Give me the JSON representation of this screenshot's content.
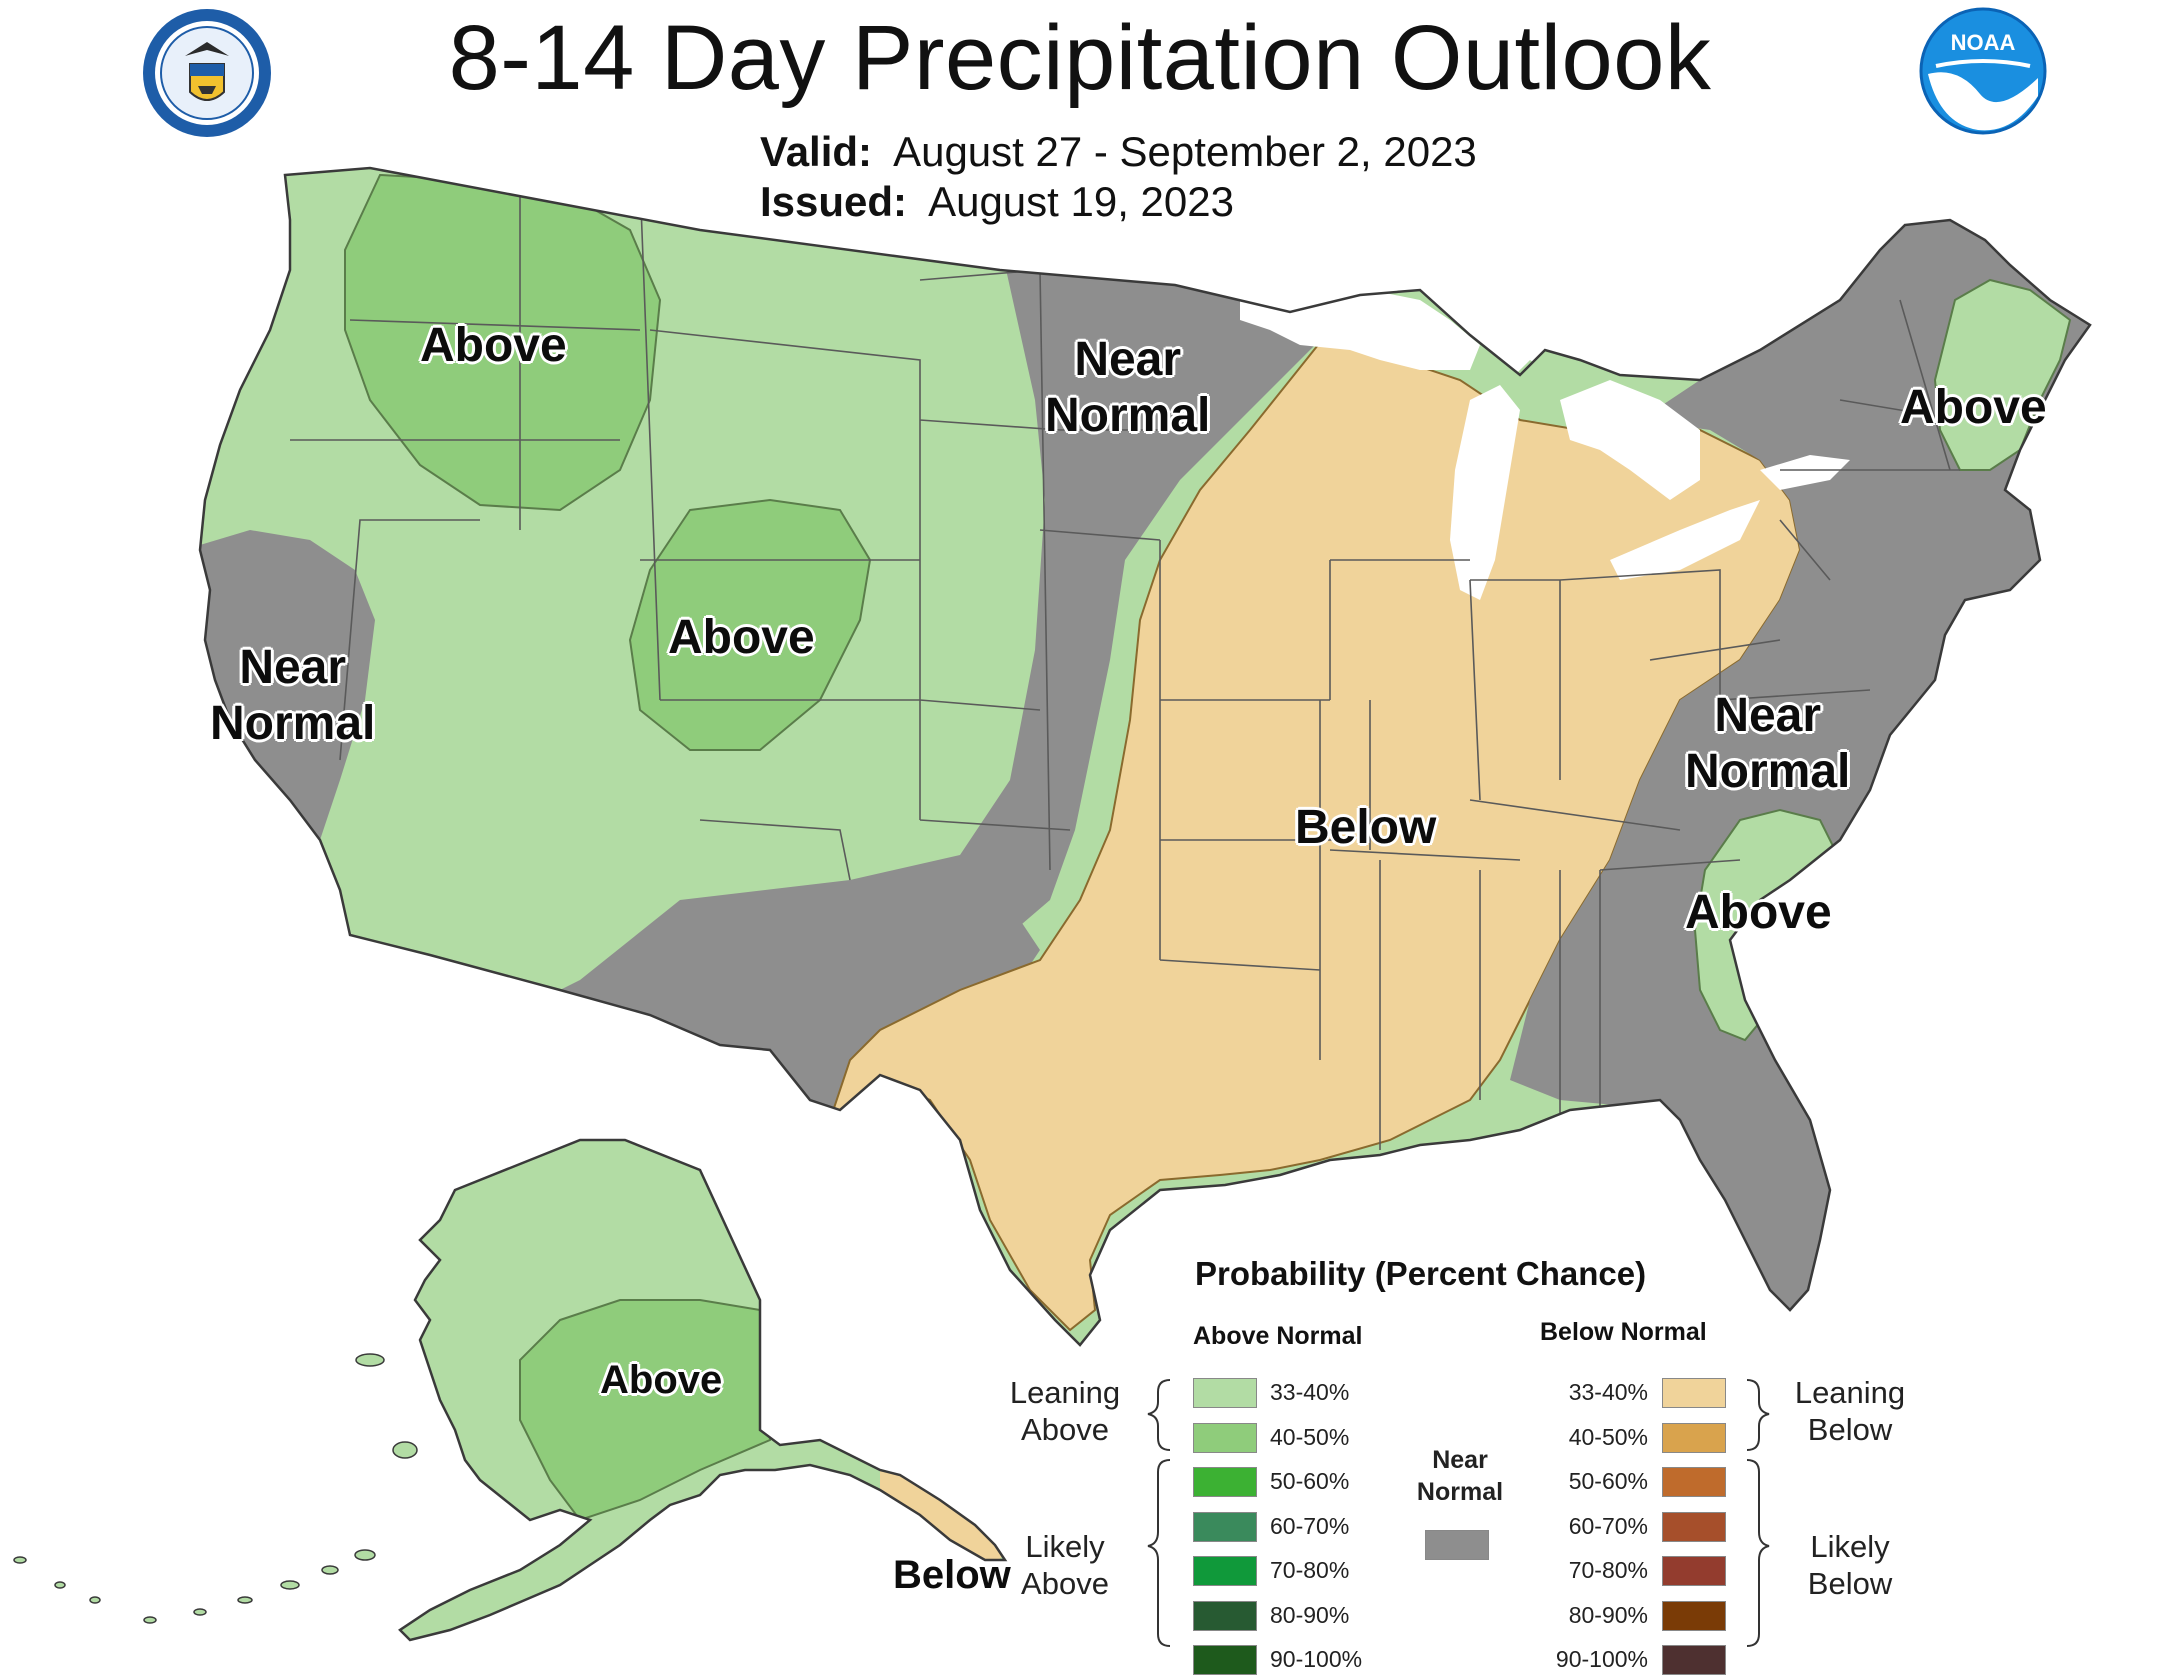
{
  "header": {
    "title": "8-14 Day Precipitation Outlook",
    "valid_label": "Valid:",
    "valid_value": "August 27 - September 2, 2023",
    "issued_label": "Issued:",
    "issued_value": "August 19, 2023"
  },
  "logos": {
    "left_seal": "department-of-commerce-seal",
    "right_logo": "noaa-logo",
    "right_logo_text": "NOAA"
  },
  "colors": {
    "leaning_above": "#b2dca4",
    "above_40_50": "#8fcc7b",
    "near_normal": "#8e8e8e",
    "leaning_below": "#f0d39a",
    "outline": "#5a5a5a",
    "background": "#ffffff"
  },
  "regions": {
    "nw_above": "Above",
    "near_normal_north": "Near\nNormal",
    "ne_above": "Above",
    "co_above": "Above",
    "ca_near_normal": "Near\nNormal",
    "east_near_normal": "Near\nNormal",
    "central_below": "Below",
    "sc_above": "Above",
    "ak_above": "Above",
    "ak_below": "Below"
  },
  "legend": {
    "title": "Probability (Percent Chance)",
    "above_header": "Above Normal",
    "below_header": "Below Normal",
    "leaning_above": "Leaning\nAbove",
    "likely_above": "Likely\nAbove",
    "leaning_below": "Leaning\nBelow",
    "likely_below": "Likely\nBelow",
    "near_normal": "Near\nNormal",
    "above_levels": [
      {
        "label": "33-40%",
        "color": "#b2dca4"
      },
      {
        "label": "40-50%",
        "color": "#8fcc7b"
      },
      {
        "label": "50-60%",
        "color": "#3cb133"
      },
      {
        "label": "60-70%",
        "color": "#3a8a5c"
      },
      {
        "label": "70-80%",
        "color": "#10993a"
      },
      {
        "label": "80-90%",
        "color": "#275a32"
      },
      {
        "label": "90-100%",
        "color": "#1e5a1c"
      }
    ],
    "below_levels": [
      {
        "label": "33-40%",
        "color": "#f0d39a"
      },
      {
        "label": "40-50%",
        "color": "#d9a34d"
      },
      {
        "label": "50-60%",
        "color": "#bf6b2c"
      },
      {
        "label": "60-70%",
        "color": "#a64f2b"
      },
      {
        "label": "70-80%",
        "color": "#933c2e"
      },
      {
        "label": "80-90%",
        "color": "#7a3b06"
      },
      {
        "label": "90-100%",
        "color": "#4e3030"
      }
    ],
    "near_color": "#8e8e8e"
  }
}
